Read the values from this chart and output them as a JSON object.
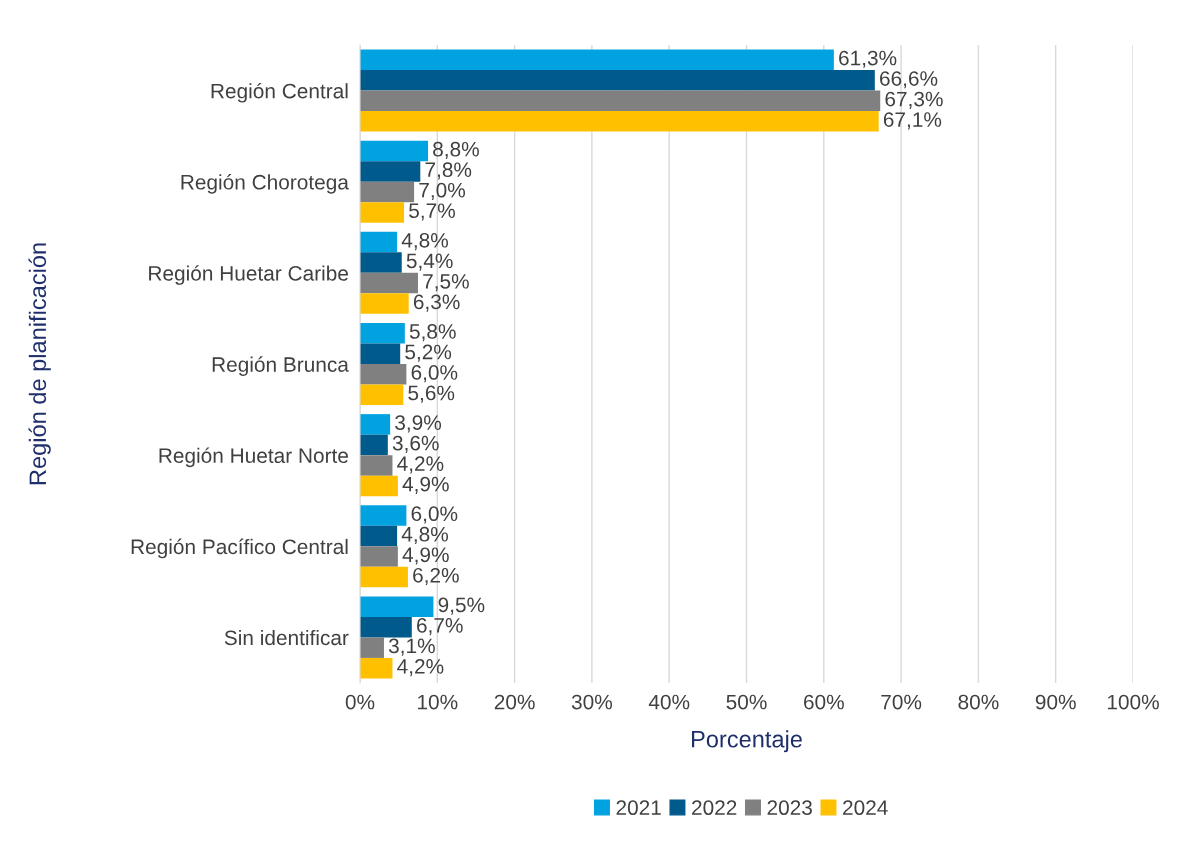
{
  "chart_data": {
    "type": "bar",
    "orientation": "horizontal",
    "xlabel": "Porcentaje",
    "ylabel": "Región de planificación",
    "categories": [
      "Región Central",
      "Región Chorotega",
      "Región Huetar Caribe",
      "Región Brunca",
      "Región Huetar Norte",
      "Región Pacífico Central",
      "Sin identificar"
    ],
    "series": [
      {
        "name": "2021",
        "color": "#00a3e0",
        "values": [
          61.3,
          8.8,
          4.8,
          5.8,
          3.9,
          6.0,
          9.5
        ],
        "value_labels": [
          "61,3%",
          "8,8%",
          "4,8%",
          "5,8%",
          "3,9%",
          "6,0%",
          "9,5%"
        ]
      },
      {
        "name": "2022",
        "color": "#005a8c",
        "values": [
          66.6,
          7.8,
          5.4,
          5.2,
          3.6,
          4.8,
          6.7
        ],
        "value_labels": [
          "66,6%",
          "7,8%",
          "5,4%",
          "5,2%",
          "3,6%",
          "4,8%",
          "6,7%"
        ]
      },
      {
        "name": "2023",
        "color": "#808080",
        "values": [
          67.3,
          7.0,
          7.5,
          6.0,
          4.2,
          4.9,
          3.1
        ],
        "value_labels": [
          "67,3%",
          "7,0%",
          "7,5%",
          "6,0%",
          "4,2%",
          "4,9%",
          "3,1%"
        ]
      },
      {
        "name": "2024",
        "color": "#ffc000",
        "values": [
          67.1,
          5.7,
          6.3,
          5.6,
          4.9,
          6.2,
          4.2
        ],
        "value_labels": [
          "67,1%",
          "5,7%",
          "6,3%",
          "5,6%",
          "4,9%",
          "6,2%",
          "4,2%"
        ]
      }
    ],
    "xlim": [
      0,
      100
    ],
    "xticks": [
      {
        "value": 0,
        "label": "0%"
      },
      {
        "value": 10,
        "label": "10%"
      },
      {
        "value": 20,
        "label": "20%"
      },
      {
        "value": 30,
        "label": "30%"
      },
      {
        "value": 40,
        "label": "40%"
      },
      {
        "value": 50,
        "label": "50%"
      },
      {
        "value": 60,
        "label": "60%"
      },
      {
        "value": 70,
        "label": "70%"
      },
      {
        "value": 80,
        "label": "80%"
      },
      {
        "value": 90,
        "label": "90%"
      },
      {
        "value": 100,
        "label": "100%"
      }
    ],
    "grid": "x",
    "legend": "bottom"
  }
}
